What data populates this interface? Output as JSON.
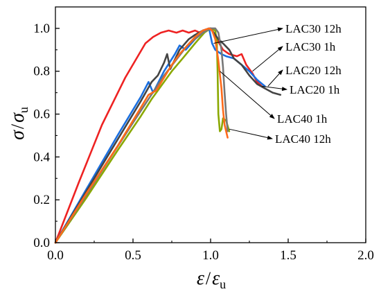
{
  "chart_data": {
    "type": "line",
    "xlabel": {
      "main": "ε",
      "sep": "/",
      "sym": "ε",
      "sub": "u"
    },
    "ylabel": {
      "main": "σ",
      "sep": "/",
      "sym": "σ",
      "sub": "u"
    },
    "xlim": [
      0.0,
      2.0
    ],
    "ylim": [
      0.0,
      1.1
    ],
    "xticks": [
      0.0,
      0.5,
      1.0,
      1.5,
      2.0
    ],
    "xtick_labels": [
      "0.0",
      "0.5",
      "1.0",
      "1.5",
      "2.0"
    ],
    "yticks": [
      0.0,
      0.2,
      0.4,
      0.6,
      0.8,
      1.0
    ],
    "ytick_labels": [
      "0.0",
      "0.2",
      "0.4",
      "0.6",
      "0.8",
      "1.0"
    ],
    "grid": false,
    "legend": "annotations with arrows on right side",
    "series": [
      {
        "name": "LAC30 12h",
        "color": "#ee2222",
        "points": [
          [
            0,
            0
          ],
          [
            0.15,
            0.28
          ],
          [
            0.3,
            0.55
          ],
          [
            0.45,
            0.77
          ],
          [
            0.58,
            0.93
          ],
          [
            0.63,
            0.96
          ],
          [
            0.68,
            0.98
          ],
          [
            0.73,
            0.99
          ],
          [
            0.78,
            0.98
          ],
          [
            0.82,
            0.99
          ],
          [
            0.86,
            0.98
          ],
          [
            0.9,
            0.99
          ],
          [
            0.93,
            0.98
          ],
          [
            0.97,
            0.995
          ],
          [
            1.0,
            1.0
          ],
          [
            1.04,
            0.95
          ],
          [
            1.08,
            0.9
          ],
          [
            1.12,
            0.88
          ],
          [
            1.17,
            0.87
          ],
          [
            1.2,
            0.88
          ],
          [
            1.23,
            0.83
          ],
          [
            1.27,
            0.79
          ],
          [
            1.3,
            0.75
          ],
          [
            1.33,
            0.73
          ]
        ]
      },
      {
        "name": "LAC30 1h",
        "color": "#1a6fe0",
        "points": [
          [
            0,
            0
          ],
          [
            0.2,
            0.25
          ],
          [
            0.4,
            0.5
          ],
          [
            0.55,
            0.68
          ],
          [
            0.6,
            0.75
          ],
          [
            0.63,
            0.7
          ],
          [
            0.7,
            0.8
          ],
          [
            0.77,
            0.88
          ],
          [
            0.8,
            0.92
          ],
          [
            0.84,
            0.9
          ],
          [
            0.9,
            0.95
          ],
          [
            0.95,
            0.99
          ],
          [
            0.99,
            1.0
          ],
          [
            1.01,
            0.93
          ],
          [
            1.03,
            0.9
          ],
          [
            1.07,
            0.88
          ],
          [
            1.1,
            0.87
          ],
          [
            1.15,
            0.86
          ],
          [
            1.2,
            0.83
          ],
          [
            1.25,
            0.8
          ],
          [
            1.3,
            0.76
          ],
          [
            1.35,
            0.73
          ]
        ]
      },
      {
        "name": "LAC20 12h",
        "color": "#8aa800",
        "points": [
          [
            0,
            0
          ],
          [
            0.2,
            0.21
          ],
          [
            0.4,
            0.43
          ],
          [
            0.55,
            0.59
          ],
          [
            0.62,
            0.67
          ],
          [
            0.68,
            0.73
          ],
          [
            0.75,
            0.8
          ],
          [
            0.82,
            0.86
          ],
          [
            0.9,
            0.93
          ],
          [
            0.96,
            0.98
          ],
          [
            1.0,
            1.0
          ],
          [
            1.03,
            0.99
          ],
          [
            1.04,
            0.94
          ],
          [
            1.045,
            0.8
          ],
          [
            1.05,
            0.6
          ],
          [
            1.06,
            0.52
          ],
          [
            1.07,
            0.53
          ],
          [
            1.08,
            0.58
          ],
          [
            1.1,
            0.57
          ],
          [
            1.12,
            0.52
          ]
        ]
      },
      {
        "name": "LAC20 1h",
        "color": "#444444",
        "points": [
          [
            0,
            0
          ],
          [
            0.2,
            0.24
          ],
          [
            0.4,
            0.48
          ],
          [
            0.55,
            0.66
          ],
          [
            0.62,
            0.75
          ],
          [
            0.66,
            0.78
          ],
          [
            0.7,
            0.84
          ],
          [
            0.72,
            0.88
          ],
          [
            0.74,
            0.81
          ],
          [
            0.8,
            0.9
          ],
          [
            0.86,
            0.95
          ],
          [
            0.9,
            0.97
          ],
          [
            0.95,
            0.99
          ],
          [
            1.0,
            1.0
          ],
          [
            1.02,
            0.98
          ],
          [
            1.05,
            0.95
          ],
          [
            1.08,
            0.93
          ],
          [
            1.12,
            0.9
          ],
          [
            1.15,
            0.86
          ],
          [
            1.2,
            0.83
          ],
          [
            1.25,
            0.78
          ],
          [
            1.3,
            0.74
          ],
          [
            1.35,
            0.72
          ],
          [
            1.4,
            0.7
          ],
          [
            1.45,
            0.69
          ]
        ]
      },
      {
        "name": "LAC40 1h",
        "color": "#777777",
        "points": [
          [
            0,
            0
          ],
          [
            0.25,
            0.28
          ],
          [
            0.5,
            0.56
          ],
          [
            0.7,
            0.78
          ],
          [
            0.85,
            0.92
          ],
          [
            0.95,
            0.98
          ],
          [
            1.0,
            1.0
          ],
          [
            1.03,
            1.0
          ],
          [
            1.05,
            0.98
          ],
          [
            1.07,
            0.9
          ],
          [
            1.08,
            0.82
          ],
          [
            1.09,
            0.7
          ],
          [
            1.1,
            0.6
          ],
          [
            1.11,
            0.52
          ]
        ]
      },
      {
        "name": "LAC40 12h",
        "color": "#ff6a1a",
        "points": [
          [
            0,
            0
          ],
          [
            0.2,
            0.23
          ],
          [
            0.4,
            0.45
          ],
          [
            0.55,
            0.63
          ],
          [
            0.6,
            0.69
          ],
          [
            0.65,
            0.71
          ],
          [
            0.7,
            0.77
          ],
          [
            0.75,
            0.83
          ],
          [
            0.8,
            0.88
          ],
          [
            0.85,
            0.92
          ],
          [
            0.9,
            0.96
          ],
          [
            0.95,
            0.99
          ],
          [
            0.99,
            1.0
          ],
          [
            1.01,
            0.99
          ],
          [
            1.03,
            0.95
          ],
          [
            1.05,
            0.85
          ],
          [
            1.07,
            0.72
          ],
          [
            1.08,
            0.62
          ],
          [
            1.09,
            0.55
          ],
          [
            1.1,
            0.52
          ],
          [
            1.11,
            0.49
          ]
        ]
      }
    ],
    "annotations": [
      {
        "text": "LAC30 12h",
        "tip": [
          1.02,
          0.93
        ]
      },
      {
        "text": "LAC30 1h",
        "tip": [
          1.27,
          0.8
        ]
      },
      {
        "text": "LAC20 12h",
        "tip": [
          1.37,
          0.73
        ]
      },
      {
        "text": "LAC20 1h",
        "tip": [
          1.33,
          0.73
        ]
      },
      {
        "text": "LAC40 1h",
        "tip": [
          1.06,
          0.8
        ]
      },
      {
        "text": "LAC40 12h",
        "tip": [
          1.12,
          0.53
        ]
      }
    ]
  }
}
